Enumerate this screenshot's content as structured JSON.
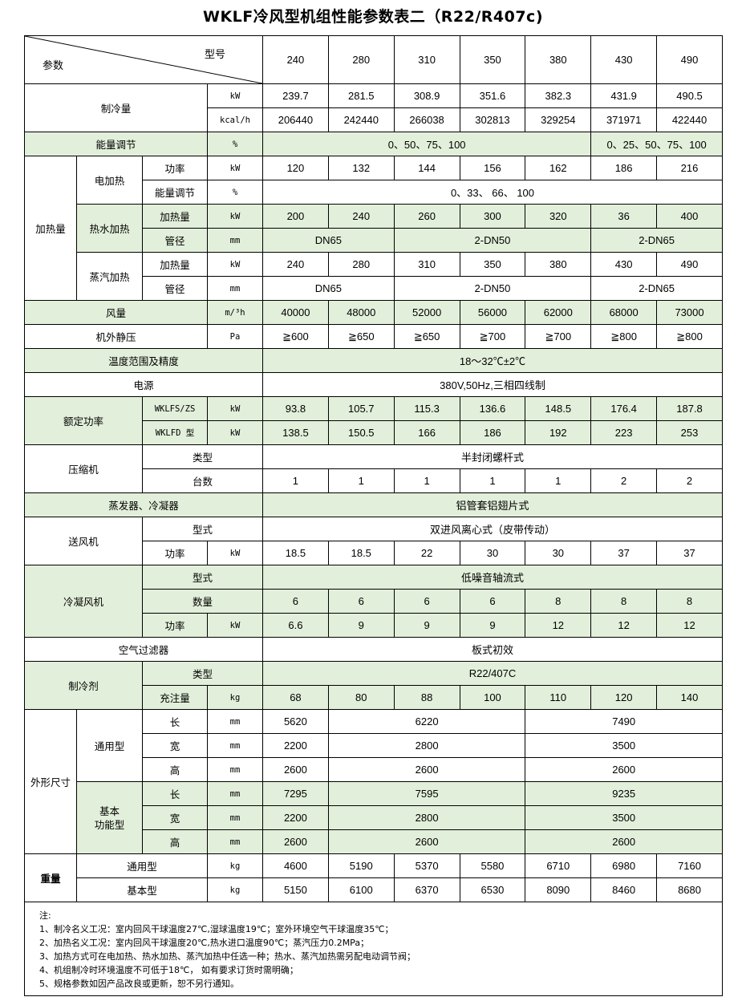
{
  "title": "WKLF冷风型机组性能参数表二（R22/R407c)",
  "header": {
    "param": "参数",
    "model": "型号",
    "models": [
      "240",
      "280",
      "310",
      "350",
      "380",
      "430",
      "490"
    ]
  },
  "cooling": {
    "label": "制冷量",
    "unit_kw": "kW",
    "unit_kcal": "kcal/h",
    "kw": [
      "239.7",
      "281.5",
      "308.9",
      "351.6",
      "382.3",
      "431.9",
      "490.5"
    ],
    "kcal": [
      "206440",
      "242440",
      "266038",
      "302813",
      "329254",
      "371971",
      "422440"
    ]
  },
  "capacity_ctrl": {
    "label": "能量调节",
    "unit": "%",
    "v1": "0、50、75、100",
    "v2": "0、25、50、75、100"
  },
  "heating": {
    "label": "加热量",
    "electric": {
      "label": "电加热",
      "power_label": "功率",
      "unit_kw": "kW",
      "power": [
        "120",
        "132",
        "144",
        "156",
        "162",
        "186",
        "216"
      ],
      "ctrl_label": "能量调节",
      "unit_pct": "%",
      "ctrl": "0、33、 66、 100"
    },
    "hot_water": {
      "label": "热水加热",
      "heat_label": "加热量",
      "unit_kw": "kW",
      "heat": [
        "200",
        "240",
        "260",
        "300",
        "320",
        "36",
        "400"
      ],
      "pipe_label": "管径",
      "unit_mm": "mm",
      "pipe": [
        "DN65",
        "2-DN50",
        "2-DN65"
      ]
    },
    "steam": {
      "label": "蒸汽加热",
      "heat_label": "加热量",
      "unit_kw": "kW",
      "heat": [
        "240",
        "280",
        "310",
        "350",
        "380",
        "430",
        "490"
      ],
      "pipe_label": "管径",
      "unit_mm": "mm",
      "pipe": [
        "DN65",
        "2-DN50",
        "2-DN65"
      ]
    }
  },
  "airflow": {
    "label": "风量",
    "unit": "m/³h",
    "values": [
      "40000",
      "48000",
      "52000",
      "56000",
      "62000",
      "68000",
      "73000"
    ]
  },
  "static_pressure": {
    "label": "机外静压",
    "unit": "Pa",
    "values": [
      "≧600",
      "≧650",
      "≧650",
      "≧700",
      "≧700",
      "≧800",
      "≧800"
    ]
  },
  "temp_range": {
    "label": "温度范围及精度",
    "value": "18～32℃±2℃"
  },
  "power_supply": {
    "label": "电源",
    "value": "380V,50Hz,三相四线制"
  },
  "rated_power": {
    "label": "额定功率",
    "rows": [
      {
        "model": "WKLFS/ZS",
        "unit": "kW",
        "values": [
          "93.8",
          "105.7",
          "115.3",
          "136.6",
          "148.5",
          "176.4",
          "187.8"
        ]
      },
      {
        "model": "WKLFD 型",
        "unit": "kW",
        "values": [
          "138.5",
          "150.5",
          "166",
          "186",
          "192",
          "223",
          "253"
        ]
      }
    ]
  },
  "compressor": {
    "label": "压缩机",
    "type_label": "类型",
    "type": "半封闭螺杆式",
    "count_label": "台数",
    "counts": [
      "1",
      "1",
      "1",
      "1",
      "1",
      "2",
      "2"
    ]
  },
  "evap_cond": {
    "label": "蒸发器、冷凝器",
    "value": "铝管套铝翅片式"
  },
  "supply_fan": {
    "label": "送风机",
    "type_label": "型式",
    "type": "双进风离心式（皮带传动）",
    "power_label": "功率",
    "unit": "kW",
    "power": [
      "18.5",
      "18.5",
      "22",
      "30",
      "30",
      "37",
      "37"
    ]
  },
  "cond_fan": {
    "label": "冷凝风机",
    "type_label": "型式",
    "type": "低噪音轴流式",
    "qty_label": "数量",
    "qty": [
      "6",
      "6",
      "6",
      "6",
      "8",
      "8",
      "8"
    ],
    "power_label": "功率",
    "unit": "kW",
    "power": [
      "6.6",
      "9",
      "9",
      "9",
      "12",
      "12",
      "12"
    ]
  },
  "air_filter": {
    "label": "空气过滤器",
    "value": "板式初效"
  },
  "refrigerant": {
    "label": "制冷剂",
    "type_label": "类型",
    "type": "R22/407C",
    "charge_label": "充注量",
    "unit": "kg",
    "charge": [
      "68",
      "80",
      "88",
      "100",
      "110",
      "120",
      "140"
    ]
  },
  "dimensions": {
    "label": "外形尺寸",
    "general": {
      "label": "通用型",
      "rows": [
        {
          "dim": "长",
          "unit": "mm",
          "values": [
            "5620",
            "6220",
            "7490"
          ]
        },
        {
          "dim": "宽",
          "unit": "mm",
          "values": [
            "2200",
            "2800",
            "3500"
          ]
        },
        {
          "dim": "高",
          "unit": "mm",
          "values": [
            "2600",
            "2600",
            "2600"
          ]
        }
      ]
    },
    "basic": {
      "label": "基本\n功能型",
      "rows": [
        {
          "dim": "长",
          "unit": "mm",
          "values": [
            "7295",
            "7595",
            "9235"
          ]
        },
        {
          "dim": "宽",
          "unit": "mm",
          "values": [
            "2200",
            "2800",
            "3500"
          ]
        },
        {
          "dim": "高",
          "unit": "mm",
          "values": [
            "2600",
            "2600",
            "2600"
          ]
        }
      ]
    }
  },
  "weight": {
    "label": "重量",
    "rows": [
      {
        "label": "通用型",
        "unit": "kg",
        "values": [
          "4600",
          "5190",
          "5370",
          "5580",
          "6710",
          "6980",
          "7160"
        ]
      },
      {
        "label": "基本型",
        "unit": "kg",
        "values": [
          "5150",
          "6100",
          "6370",
          "6530",
          "8090",
          "8460",
          "8680"
        ]
      }
    ]
  },
  "notes": {
    "title": "注:",
    "items": [
      "1、制冷名义工况：室内回风干球温度27℃,湿球温度19℃；室外环境空气干球温度35℃；",
      "2、加热名义工况：室内回风干球温度20℃,热水进口温度90℃；蒸汽压力0.2MPa；",
      "3、加热方式可在电加热、热水加热、蒸汽加热中任选一种；热水、蒸汽加热需另配电动调节阀；",
      "4、机组制冷时环境温度不可低于18℃， 如有要求订货时需明确；",
      "5、规格参数如因产品改良或更新，恕不另行通知。"
    ]
  }
}
